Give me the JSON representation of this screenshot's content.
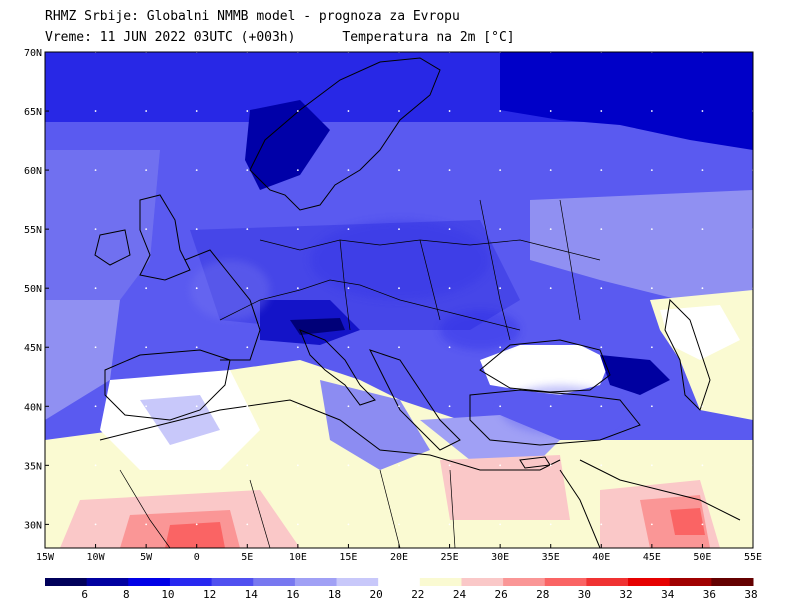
{
  "header": {
    "line1": "RHMZ Srbije: Globalni NMMB model - prognoza za Evropu",
    "line2": "Vreme: 11 JUN 2022 03UTC (+003h)      Temperatura na 2m [°C]"
  },
  "map": {
    "lon_labels": [
      "15W",
      "10W",
      "5W",
      "0",
      "5E",
      "10E",
      "15E",
      "20E",
      "25E",
      "30E",
      "35E",
      "40E",
      "45E",
      "50E",
      "55E"
    ],
    "lat_labels": [
      "70N",
      "65N",
      "60N",
      "55N",
      "50N",
      "45N",
      "40N",
      "35N",
      "30N"
    ],
    "lon_range": [
      -15,
      55
    ],
    "lat_range": [
      28,
      70
    ]
  },
  "colorbar": {
    "levels": [
      "6",
      "8",
      "10",
      "12",
      "14",
      "16",
      "18",
      "20",
      "22",
      "24",
      "26",
      "28",
      "30",
      "32",
      "34",
      "36",
      "38"
    ],
    "colors": [
      "#00005a",
      "#0000a0",
      "#0000e6",
      "#2828f0",
      "#5050f0",
      "#7878f0",
      "#a0a0f5",
      "#c8c8fa",
      "#ffffff",
      "#fafad2",
      "#fac8c8",
      "#fa9696",
      "#fa6464",
      "#f03232",
      "#e60000",
      "#a00000",
      "#640000"
    ]
  }
}
